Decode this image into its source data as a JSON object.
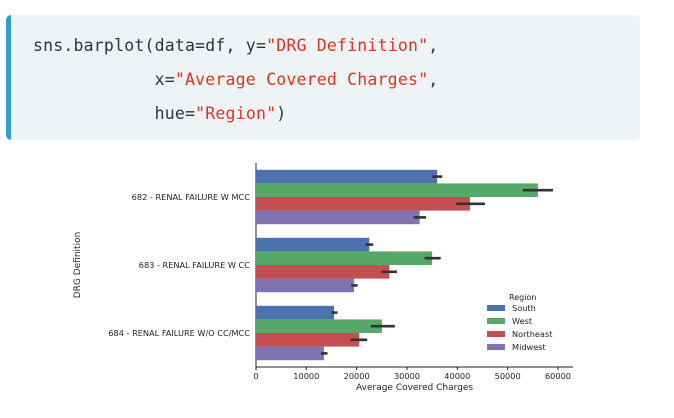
{
  "code": {
    "lines": [
      [
        {
          "t": "sns.barplot(data=df, y=",
          "s": false
        },
        {
          "t": "\"DRG Definition\"",
          "s": true
        },
        {
          "t": ",",
          "s": false
        }
      ],
      [
        {
          "t": "            x=",
          "s": false
        },
        {
          "t": "\"Average Covered Charges\"",
          "s": true
        },
        {
          "t": ",",
          "s": false
        }
      ],
      [
        {
          "t": "            hue=",
          "s": false
        },
        {
          "t": "\"Region\"",
          "s": true
        },
        {
          "t": ")",
          "s": false
        }
      ]
    ]
  },
  "chart_data": {
    "type": "bar",
    "orientation": "horizontal",
    "categories": [
      "682 - RENAL FAILURE W MCC",
      "683 - RENAL FAILURE W CC",
      "684 - RENAL FAILURE W/O CC/MCC"
    ],
    "series": [
      {
        "name": "South",
        "color": "#4c72b0",
        "values": [
          36000,
          22500,
          15500
        ],
        "ci": [
          [
            35000,
            37000
          ],
          [
            21800,
            23300
          ],
          [
            15000,
            16200
          ]
        ]
      },
      {
        "name": "West",
        "color": "#55a868",
        "values": [
          56000,
          35000,
          25000
        ],
        "ci": [
          [
            53000,
            59000
          ],
          [
            33500,
            36700
          ],
          [
            22800,
            27600
          ]
        ]
      },
      {
        "name": "Northeast",
        "color": "#c44e52",
        "values": [
          42500,
          26500,
          20500
        ],
        "ci": [
          [
            39800,
            45500
          ],
          [
            24900,
            28000
          ],
          [
            18800,
            22100
          ]
        ]
      },
      {
        "name": "Midwest",
        "color": "#8172b2",
        "values": [
          32500,
          19500,
          13500
        ],
        "ci": [
          [
            31300,
            33800
          ],
          [
            18900,
            20200
          ],
          [
            12900,
            14200
          ]
        ]
      }
    ],
    "xlabel": "Average Covered Charges",
    "ylabel": "DRG Definition",
    "xticks": [
      0,
      10000,
      20000,
      30000,
      40000,
      50000,
      60000
    ],
    "xlim": [
      0,
      63000
    ],
    "legend": {
      "title": "Region",
      "placement": "lower-right"
    }
  }
}
